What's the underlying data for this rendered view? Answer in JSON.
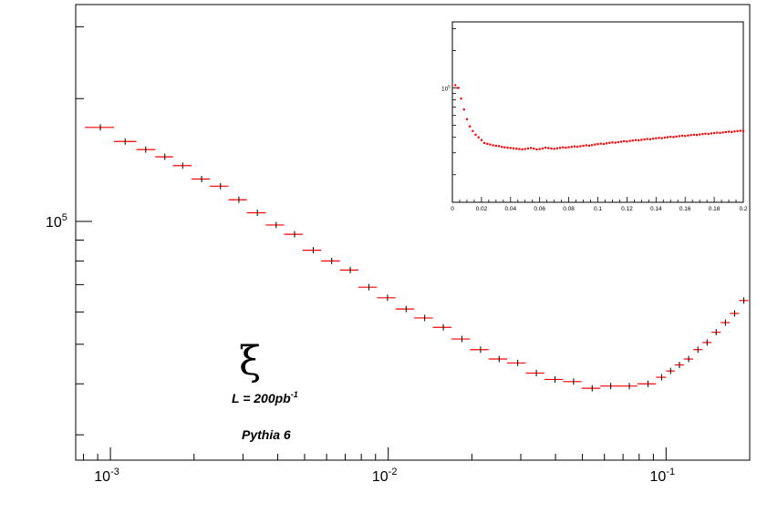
{
  "chart_data": [
    {
      "type": "scatter",
      "x_scale": "log",
      "y_scale": "log",
      "xlim": [
        0.00075,
        0.2
      ],
      "ylim": [
        26000,
        340000
      ],
      "x_ticks": [
        {
          "value": 0.001,
          "base": "10",
          "exp": "-3"
        },
        {
          "value": 0.01,
          "base": "10",
          "exp": "-2"
        },
        {
          "value": 0.1,
          "base": "10",
          "exp": "-1"
        }
      ],
      "y_ticks": [
        {
          "value": 100000,
          "base": "10",
          "exp": "5"
        }
      ],
      "marker_color": "#ff0000",
      "errorbar_color": "#000000",
      "points": [
        {
          "x": 0.00092,
          "y": 170000,
          "xlo": 0.00081,
          "xhi": 0.00103
        },
        {
          "x": 0.00113,
          "y": 157000,
          "xlo": 0.00103,
          "xhi": 0.00124
        },
        {
          "x": 0.00134,
          "y": 150000,
          "xlo": 0.00124,
          "xhi": 0.00145
        },
        {
          "x": 0.00157,
          "y": 144000,
          "xlo": 0.00145,
          "xhi": 0.00168
        },
        {
          "x": 0.00182,
          "y": 137000,
          "xlo": 0.00168,
          "xhi": 0.00196
        },
        {
          "x": 0.00213,
          "y": 127000,
          "xlo": 0.00196,
          "xhi": 0.00228
        },
        {
          "x": 0.00249,
          "y": 122000,
          "xlo": 0.00228,
          "xhi": 0.00266
        },
        {
          "x": 0.0029,
          "y": 113000,
          "xlo": 0.00266,
          "xhi": 0.0031
        },
        {
          "x": 0.00338,
          "y": 105000,
          "xlo": 0.0031,
          "xhi": 0.00362
        },
        {
          "x": 0.00395,
          "y": 98000,
          "xlo": 0.00362,
          "xhi": 0.00422
        },
        {
          "x": 0.0046,
          "y": 93000,
          "xlo": 0.00422,
          "xhi": 0.00492
        },
        {
          "x": 0.00537,
          "y": 85000,
          "xlo": 0.00492,
          "xhi": 0.00574
        },
        {
          "x": 0.00626,
          "y": 80000,
          "xlo": 0.00574,
          "xhi": 0.0067
        },
        {
          "x": 0.0073,
          "y": 76000,
          "xlo": 0.0067,
          "xhi": 0.00781
        },
        {
          "x": 0.00852,
          "y": 69000,
          "xlo": 0.00781,
          "xhi": 0.00911
        },
        {
          "x": 0.00994,
          "y": 65000,
          "xlo": 0.00911,
          "xhi": 0.01063
        },
        {
          "x": 0.0116,
          "y": 61000,
          "xlo": 0.01063,
          "xhi": 0.0124
        },
        {
          "x": 0.01353,
          "y": 58000,
          "xlo": 0.0124,
          "xhi": 0.01447
        },
        {
          "x": 0.01579,
          "y": 55000,
          "xlo": 0.01447,
          "xhi": 0.01688
        },
        {
          "x": 0.01842,
          "y": 51500,
          "xlo": 0.01688,
          "xhi": 0.01969
        },
        {
          "x": 0.02149,
          "y": 48500,
          "xlo": 0.01969,
          "xhi": 0.02297
        },
        {
          "x": 0.02507,
          "y": 46000,
          "xlo": 0.02297,
          "xhi": 0.0268
        },
        {
          "x": 0.02925,
          "y": 45000,
          "xlo": 0.0268,
          "xhi": 0.03127
        },
        {
          "x": 0.03413,
          "y": 42500,
          "xlo": 0.03127,
          "xhi": 0.03648
        },
        {
          "x": 0.03982,
          "y": 41000,
          "xlo": 0.03648,
          "xhi": 0.04256
        },
        {
          "x": 0.04645,
          "y": 40500,
          "xlo": 0.04256,
          "xhi": 0.04966
        },
        {
          "x": 0.0542,
          "y": 39000,
          "xlo": 0.04966,
          "xhi": 0.05794
        },
        {
          "x": 0.06323,
          "y": 39500,
          "xlo": 0.05794,
          "xhi": 0.0676
        },
        {
          "x": 0.07377,
          "y": 39500,
          "xlo": 0.0676,
          "xhi": 0.07886
        },
        {
          "x": 0.08607,
          "y": 40000,
          "xlo": 0.07886,
          "xhi": 0.092
        },
        {
          "x": 0.09637,
          "y": 41500,
          "xlo": 0.092,
          "xhi": 0.1001
        },
        {
          "x": 0.1038,
          "y": 43000,
          "xlo": 0.1001,
          "xhi": 0.1075
        },
        {
          "x": 0.1117,
          "y": 44500,
          "xlo": 0.1075,
          "xhi": 0.1159
        },
        {
          "x": 0.1206,
          "y": 46000,
          "xlo": 0.1159,
          "xhi": 0.1252
        },
        {
          "x": 0.1302,
          "y": 48500,
          "xlo": 0.1252,
          "xhi": 0.1352
        },
        {
          "x": 0.1405,
          "y": 50500,
          "xlo": 0.1352,
          "xhi": 0.1458
        },
        {
          "x": 0.1515,
          "y": 53500,
          "xlo": 0.1458,
          "xhi": 0.1572
        },
        {
          "x": 0.1635,
          "y": 56500,
          "xlo": 0.1572,
          "xhi": 0.1697
        },
        {
          "x": 0.1765,
          "y": 59500,
          "xlo": 0.1697,
          "xhi": 0.1832
        },
        {
          "x": 0.1905,
          "y": 64000,
          "xlo": 0.1832,
          "xhi": 0.1978
        }
      ]
    },
    {
      "type": "scatter",
      "x_scale": "linear",
      "y_scale": "log",
      "xlim": [
        0,
        0.2
      ],
      "ylim": [
        12000,
        340000
      ],
      "x_ticks": [
        0,
        0.02,
        0.04,
        0.06,
        0.08,
        0.1,
        0.12,
        0.14,
        0.16,
        0.18,
        0.2
      ],
      "x_tick_labels": [
        "0",
        "0.02",
        "0.04",
        "0.06",
        "0.08",
        "0.1",
        "0.12",
        "0.14",
        "0.16",
        "0.18",
        "0.2"
      ],
      "y_ticks": [
        {
          "value": 100000,
          "base": "10",
          "exp": "5"
        }
      ],
      "marker_color": "#ff0000",
      "points_x": [
        0.002,
        0.004,
        0.006,
        0.008,
        0.01,
        0.012,
        0.014,
        0.016,
        0.018,
        0.02,
        0.022,
        0.024,
        0.026,
        0.028,
        0.03,
        0.032,
        0.034,
        0.036,
        0.038,
        0.04,
        0.042,
        0.044,
        0.046,
        0.048,
        0.05,
        0.052,
        0.054,
        0.056,
        0.058,
        0.06,
        0.062,
        0.064,
        0.066,
        0.068,
        0.07,
        0.072,
        0.074,
        0.076,
        0.078,
        0.08,
        0.082,
        0.084,
        0.086,
        0.088,
        0.09,
        0.092,
        0.094,
        0.096,
        0.098,
        0.1,
        0.102,
        0.104,
        0.106,
        0.108,
        0.11,
        0.112,
        0.114,
        0.116,
        0.118,
        0.12,
        0.122,
        0.124,
        0.126,
        0.128,
        0.13,
        0.132,
        0.134,
        0.136,
        0.138,
        0.14,
        0.142,
        0.144,
        0.146,
        0.148,
        0.15,
        0.152,
        0.154,
        0.156,
        0.158,
        0.16,
        0.162,
        0.164,
        0.166,
        0.168,
        0.17,
        0.172,
        0.174,
        0.176,
        0.178,
        0.18,
        0.182,
        0.184,
        0.186,
        0.188,
        0.19,
        0.192,
        0.194,
        0.196,
        0.198,
        0.2
      ],
      "points_y": [
        105000,
        100000,
        82000,
        67000,
        56000,
        49000,
        45000,
        42000,
        40000,
        38000,
        36000,
        35500,
        35000,
        34500,
        34200,
        34000,
        33500,
        33200,
        33000,
        32800,
        32600,
        32400,
        32200,
        32000,
        32200,
        32500,
        32800,
        32500,
        32000,
        32200,
        32500,
        33000,
        32800,
        32500,
        32300,
        32600,
        32900,
        33200,
        33000,
        33300,
        33500,
        33800,
        33600,
        33900,
        34200,
        34500,
        34300,
        34600,
        35000,
        35300,
        35600,
        35400,
        35800,
        36100,
        36400,
        36200,
        36600,
        36900,
        37200,
        37000,
        37400,
        37700,
        38000,
        37800,
        38200,
        38500,
        38800,
        38600,
        39000,
        39300,
        39600,
        39400,
        39800,
        40100,
        40400,
        40200,
        40600,
        40900,
        41200,
        41000,
        41400,
        41700,
        42000,
        41800,
        42200,
        42500,
        42800,
        42600,
        43000,
        43300,
        43600,
        43400,
        43800,
        44100,
        44400,
        44200,
        44600,
        44900,
        45200,
        45000
      ]
    }
  ],
  "annotations": {
    "symbol": "ξ",
    "luminosity_text": "L = 200pb",
    "luminosity_exp": "-1",
    "generator_text": "Pythia 6"
  }
}
